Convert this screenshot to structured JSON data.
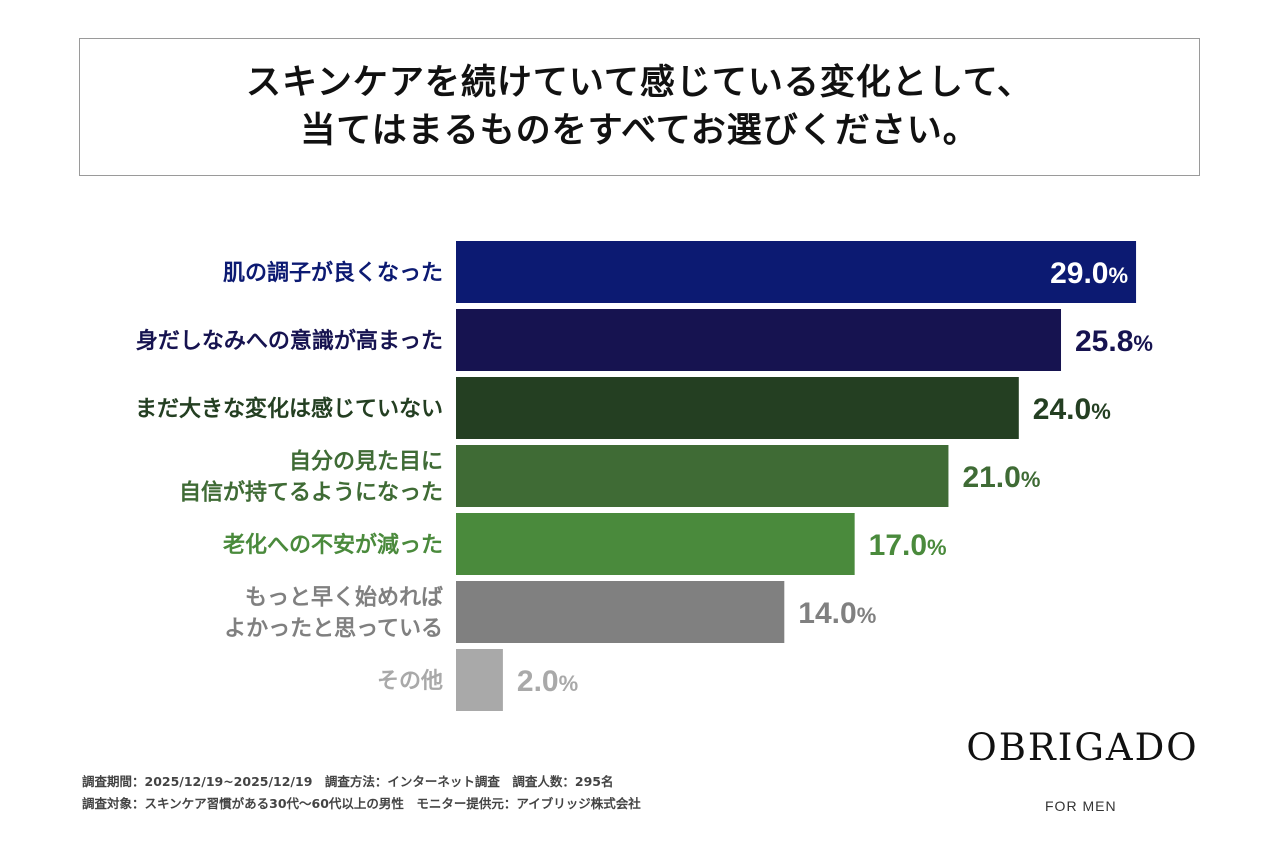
{
  "header": {
    "title_line1": "スキンケアを続けていて感じている変化として、",
    "title_line2": "当てはまるものをすべてお選びください。"
  },
  "chart_data": {
    "type": "bar",
    "orientation": "horizontal",
    "title": "スキンケアを続けていて感じている変化として、当てはまるものをすべてお選びください。",
    "xlim": [
      0,
      100
    ],
    "unit": "%",
    "categories": [
      [
        "肌の調子が良くなった"
      ],
      [
        "身だしなみへの意識が高まった"
      ],
      [
        "まだ大きな変化は感じていない"
      ],
      [
        "自分の見た目に",
        "自信が持てるようになった"
      ],
      [
        "老化への不安が減った"
      ],
      [
        "もっと早く始めれば",
        "よかったと思っている"
      ],
      [
        "その他"
      ]
    ],
    "values": [
      29.0,
      25.8,
      24.0,
      21.0,
      17.0,
      14.0,
      2.0
    ],
    "value_labels": [
      "29.0",
      "25.8",
      "24.0",
      "21.0",
      "17.0",
      "14.0",
      "2.0"
    ],
    "colors": [
      "#0c1a72",
      "#161350",
      "#243f22",
      "#3f6b35",
      "#4a8a3c",
      "#808080",
      "#a9a9a9"
    ],
    "label_colors": [
      "#0c1a72",
      "#161350",
      "#243f22",
      "#3f6b35",
      "#4a8a3c",
      "#808080",
      "#a9a9a9"
    ]
  },
  "footer": {
    "note1": "調査期間：2025/12/19~2025/12/19　調査方法：インターネット調査　調査人数：295名",
    "note2": "調査対象：スキンケア習慣がある30代～60代以上の男性　モニター提供元：アイブリッジ株式会社",
    "logo": "OBRIGADO",
    "logo_sub": "FOR MEN"
  }
}
